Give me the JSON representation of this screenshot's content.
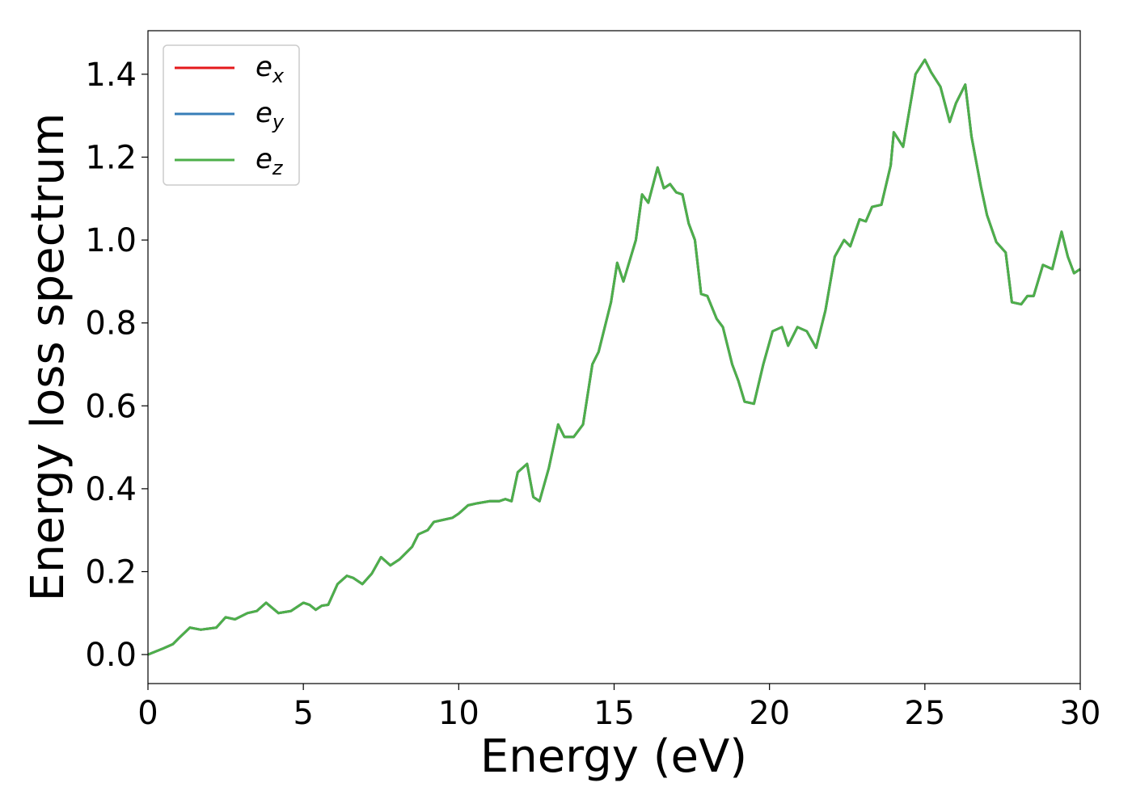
{
  "chart_data": {
    "type": "line",
    "xlabel": "Energy (eV)",
    "ylabel": "Energy loss spectrum",
    "x": [
      0,
      0.5,
      0.8,
      1.0,
      1.35,
      1.7,
      2.2,
      2.5,
      2.8,
      3.2,
      3.5,
      3.8,
      4.2,
      4.6,
      5.0,
      5.2,
      5.4,
      5.6,
      5.8,
      6.1,
      6.4,
      6.6,
      6.9,
      7.2,
      7.5,
      7.8,
      8.1,
      8.5,
      8.7,
      9.0,
      9.2,
      9.5,
      9.8,
      10.0,
      10.3,
      10.6,
      11.0,
      11.3,
      11.5,
      11.7,
      11.9,
      12.2,
      12.4,
      12.6,
      12.9,
      13.2,
      13.4,
      13.7,
      14.0,
      14.3,
      14.5,
      14.9,
      15.1,
      15.3,
      15.7,
      15.9,
      16.1,
      16.4,
      16.6,
      16.8,
      17.0,
      17.2,
      17.4,
      17.6,
      17.8,
      18.0,
      18.3,
      18.5,
      18.8,
      19.0,
      19.2,
      19.5,
      19.8,
      20.1,
      20.4,
      20.6,
      20.9,
      21.2,
      21.5,
      21.8,
      22.1,
      22.4,
      22.6,
      22.9,
      23.1,
      23.3,
      23.6,
      23.9,
      24.0,
      24.3,
      24.7,
      25.0,
      25.2,
      25.5,
      25.8,
      26.0,
      26.3,
      26.5,
      26.8,
      27.0,
      27.3,
      27.6,
      27.8,
      28.1,
      28.3,
      28.5,
      28.8,
      29.1,
      29.4,
      29.6,
      29.8,
      30.0
    ],
    "series": [
      {
        "name": "e_x",
        "color": "#e41a1c",
        "values": [
          0.0,
          0.015,
          0.025,
          0.04,
          0.065,
          0.06,
          0.065,
          0.09,
          0.085,
          0.1,
          0.105,
          0.125,
          0.1,
          0.105,
          0.125,
          0.12,
          0.108,
          0.118,
          0.12,
          0.17,
          0.19,
          0.185,
          0.17,
          0.195,
          0.235,
          0.215,
          0.23,
          0.26,
          0.29,
          0.3,
          0.32,
          0.325,
          0.33,
          0.34,
          0.36,
          0.365,
          0.37,
          0.37,
          0.375,
          0.37,
          0.44,
          0.46,
          0.38,
          0.37,
          0.45,
          0.555,
          0.525,
          0.525,
          0.555,
          0.7,
          0.73,
          0.85,
          0.945,
          0.9,
          1.0,
          1.11,
          1.09,
          1.175,
          1.125,
          1.135,
          1.115,
          1.11,
          1.04,
          1.0,
          0.87,
          0.865,
          0.81,
          0.79,
          0.7,
          0.66,
          0.61,
          0.605,
          0.7,
          0.78,
          0.79,
          0.745,
          0.79,
          0.78,
          0.74,
          0.83,
          0.96,
          1.0,
          0.985,
          1.05,
          1.045,
          1.08,
          1.085,
          1.18,
          1.26,
          1.225,
          1.4,
          1.435,
          1.405,
          1.37,
          1.285,
          1.33,
          1.375,
          1.25,
          1.13,
          1.06,
          0.995,
          0.97,
          0.85,
          0.845,
          0.865,
          0.865,
          0.94,
          0.93,
          1.02,
          0.96,
          0.92,
          0.93
        ]
      },
      {
        "name": "e_y",
        "color": "#377eb8",
        "values": [
          0.0,
          0.015,
          0.025,
          0.04,
          0.065,
          0.06,
          0.065,
          0.09,
          0.085,
          0.1,
          0.105,
          0.125,
          0.1,
          0.105,
          0.125,
          0.12,
          0.108,
          0.118,
          0.12,
          0.17,
          0.19,
          0.185,
          0.17,
          0.195,
          0.235,
          0.215,
          0.23,
          0.26,
          0.29,
          0.3,
          0.32,
          0.325,
          0.33,
          0.34,
          0.36,
          0.365,
          0.37,
          0.37,
          0.375,
          0.37,
          0.44,
          0.46,
          0.38,
          0.37,
          0.45,
          0.555,
          0.525,
          0.525,
          0.555,
          0.7,
          0.73,
          0.85,
          0.945,
          0.9,
          1.0,
          1.11,
          1.09,
          1.175,
          1.125,
          1.135,
          1.115,
          1.11,
          1.04,
          1.0,
          0.87,
          0.865,
          0.81,
          0.79,
          0.7,
          0.66,
          0.61,
          0.605,
          0.7,
          0.78,
          0.79,
          0.745,
          0.79,
          0.78,
          0.74,
          0.83,
          0.96,
          1.0,
          0.985,
          1.05,
          1.045,
          1.08,
          1.085,
          1.18,
          1.26,
          1.225,
          1.4,
          1.435,
          1.405,
          1.37,
          1.285,
          1.33,
          1.375,
          1.25,
          1.13,
          1.06,
          0.995,
          0.97,
          0.85,
          0.845,
          0.865,
          0.865,
          0.94,
          0.93,
          1.02,
          0.96,
          0.92,
          0.93
        ]
      },
      {
        "name": "e_z",
        "color": "#4daf4a",
        "values": [
          0.0,
          0.015,
          0.025,
          0.04,
          0.065,
          0.06,
          0.065,
          0.09,
          0.085,
          0.1,
          0.105,
          0.125,
          0.1,
          0.105,
          0.125,
          0.12,
          0.108,
          0.118,
          0.12,
          0.17,
          0.19,
          0.185,
          0.17,
          0.195,
          0.235,
          0.215,
          0.23,
          0.26,
          0.29,
          0.3,
          0.32,
          0.325,
          0.33,
          0.34,
          0.36,
          0.365,
          0.37,
          0.37,
          0.375,
          0.37,
          0.44,
          0.46,
          0.38,
          0.37,
          0.45,
          0.555,
          0.525,
          0.525,
          0.555,
          0.7,
          0.73,
          0.85,
          0.945,
          0.9,
          1.0,
          1.11,
          1.09,
          1.175,
          1.125,
          1.135,
          1.115,
          1.11,
          1.04,
          1.0,
          0.87,
          0.865,
          0.81,
          0.79,
          0.7,
          0.66,
          0.61,
          0.605,
          0.7,
          0.78,
          0.79,
          0.745,
          0.79,
          0.78,
          0.74,
          0.83,
          0.96,
          1.0,
          0.985,
          1.05,
          1.045,
          1.08,
          1.085,
          1.18,
          1.26,
          1.225,
          1.4,
          1.435,
          1.405,
          1.37,
          1.285,
          1.33,
          1.375,
          1.25,
          1.13,
          1.06,
          0.995,
          0.97,
          0.85,
          0.845,
          0.865,
          0.865,
          0.94,
          0.93,
          1.02,
          0.96,
          0.92,
          0.93
        ]
      }
    ],
    "xlim": [
      0,
      30
    ],
    "xticks": [
      0,
      5,
      10,
      15,
      20,
      25,
      30
    ],
    "ylim": [
      -0.07,
      1.505
    ],
    "yticks": [
      {
        "value": 0,
        "label": "0.0"
      },
      {
        "value": 0.2,
        "label": "0.2"
      },
      {
        "value": 0.4,
        "label": "0.4"
      },
      {
        "value": 0.6,
        "label": "0.6"
      },
      {
        "value": 0.8,
        "label": "0.8"
      },
      {
        "value": 1.0,
        "label": "1.0"
      },
      {
        "value": 1.2,
        "label": "1.2"
      },
      {
        "value": 1.4,
        "label": "1.4"
      }
    ],
    "grid": false,
    "legend": "upper left"
  }
}
